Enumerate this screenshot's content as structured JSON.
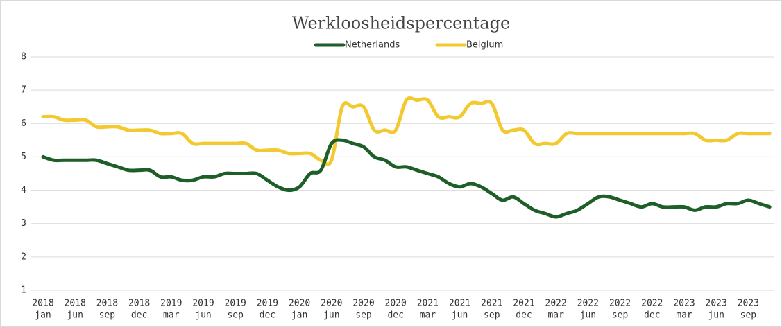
{
  "chart_data": {
    "type": "line",
    "title": "Werkloosheidspercentage",
    "categories": [
      [
        "2018",
        "jan"
      ],
      null,
      null,
      [
        "2018",
        "jun"
      ],
      null,
      null,
      [
        "2018",
        "sep"
      ],
      null,
      null,
      [
        "2018",
        "dec"
      ],
      null,
      null,
      [
        "2019",
        "mar"
      ],
      null,
      null,
      [
        "2019",
        "jun"
      ],
      null,
      null,
      [
        "2019",
        "sep"
      ],
      null,
      null,
      [
        "2019",
        "dec"
      ],
      null,
      null,
      [
        "2020",
        "jan"
      ],
      null,
      null,
      [
        "2020",
        "jun"
      ],
      null,
      null,
      [
        "2020",
        "sep"
      ],
      null,
      null,
      [
        "2020",
        "dec"
      ],
      null,
      null,
      [
        "2021",
        "mar"
      ],
      null,
      null,
      [
        "2021",
        "jun"
      ],
      null,
      null,
      [
        "2021",
        "sep"
      ],
      null,
      null,
      [
        "2021",
        "dec"
      ],
      null,
      null,
      [
        "2022",
        "mar"
      ],
      null,
      null,
      [
        "2022",
        "jun"
      ],
      null,
      null,
      [
        "2022",
        "sep"
      ],
      null,
      null,
      [
        "2022",
        "dec"
      ],
      null,
      null,
      [
        "2023",
        "mar"
      ],
      null,
      null,
      [
        "2023",
        "jun"
      ],
      null,
      null,
      [
        "2023",
        "sep"
      ],
      null,
      null
    ],
    "series": [
      {
        "name": "Netherlands",
        "color": "#1e5e28",
        "values": [
          5.0,
          4.9,
          4.9,
          4.9,
          4.9,
          4.9,
          4.8,
          4.7,
          4.6,
          4.6,
          4.6,
          4.4,
          4.4,
          4.3,
          4.3,
          4.4,
          4.4,
          4.5,
          4.5,
          4.5,
          4.5,
          4.3,
          4.1,
          4.0,
          4.1,
          4.5,
          4.6,
          5.4,
          5.5,
          5.4,
          5.3,
          5.0,
          4.9,
          4.7,
          4.7,
          4.6,
          4.5,
          4.4,
          4.2,
          4.1,
          4.2,
          4.1,
          3.9,
          3.7,
          3.8,
          3.6,
          3.4,
          3.3,
          3.2,
          3.3,
          3.4,
          3.6,
          3.8,
          3.8,
          3.7,
          3.6,
          3.5,
          3.6,
          3.5,
          3.5,
          3.5,
          3.4,
          3.5,
          3.5,
          3.6,
          3.6,
          3.7,
          3.6,
          3.5
        ]
      },
      {
        "name": "Belgium",
        "color": "#f2c92e",
        "values": [
          6.2,
          6.2,
          6.1,
          6.1,
          6.1,
          5.9,
          5.9,
          5.9,
          5.8,
          5.8,
          5.8,
          5.7,
          5.7,
          5.7,
          5.4,
          5.4,
          5.4,
          5.4,
          5.4,
          5.4,
          5.2,
          5.2,
          5.2,
          5.1,
          5.1,
          5.1,
          4.9,
          4.9,
          6.5,
          6.5,
          6.5,
          5.8,
          5.8,
          5.8,
          6.7,
          6.7,
          6.7,
          6.2,
          6.2,
          6.2,
          6.6,
          6.6,
          6.6,
          5.8,
          5.8,
          5.8,
          5.4,
          5.4,
          5.4,
          5.7,
          5.7,
          5.7,
          5.7,
          5.7,
          5.7,
          5.7,
          5.7,
          5.7,
          5.7,
          5.7,
          5.7,
          5.7,
          5.5,
          5.5,
          5.5,
          5.7,
          5.7,
          5.7,
          5.7
        ]
      }
    ],
    "ylim": [
      1,
      8
    ],
    "yticks": [
      1,
      2,
      3,
      4,
      5,
      6,
      7,
      8
    ],
    "grid": true,
    "legend": "top"
  }
}
